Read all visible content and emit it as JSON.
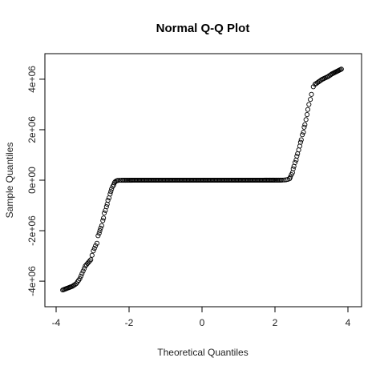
{
  "chart_data": {
    "type": "scatter",
    "title": "Normal Q-Q Plot",
    "xlabel": "Theoretical Quantiles",
    "ylabel": "Sample Quantiles",
    "xlim": [
      -4,
      4
    ],
    "ylim": [
      -4600000.0,
      4600000.0
    ],
    "x_ticks": [
      -4,
      -2,
      0,
      2,
      4
    ],
    "x_tick_labels": [
      "-4",
      "-2",
      "0",
      "2",
      "4"
    ],
    "y_ticks": [
      -4000000,
      -2000000,
      0,
      2000000,
      4000000
    ],
    "y_tick_labels": [
      "-4e+06",
      "-2e+06",
      "0e+00",
      "2e+06",
      "4e+06"
    ],
    "grid": false,
    "marker": "open-circle",
    "series": [
      {
        "x": [
          -3.82,
          -3.55,
          -3.45,
          -3.35,
          -3.2,
          -3.05,
          -2.98,
          -2.92,
          -2.88,
          -2.85,
          -2.82,
          -2.8,
          -2.78,
          -2.75,
          -2.72,
          -2.7,
          -2.68,
          -2.65,
          -2.62,
          -2.6,
          -2.58,
          -2.55,
          -2.52,
          -2.5,
          -2.48,
          -2.45,
          -2.42,
          -2.4,
          -2.38,
          -2.35,
          -2.32,
          -2.3,
          -2.25,
          -2.2,
          -2.1,
          -2.0,
          -1.8,
          -1.6,
          -1.4,
          -1.2,
          -1.0,
          -0.8,
          -0.6,
          -0.4,
          -0.2,
          0.0,
          0.2,
          0.4,
          0.6,
          0.8,
          1.0,
          1.2,
          1.4,
          1.6,
          1.8,
          2.0,
          2.1,
          2.2,
          2.25,
          2.3,
          2.35,
          2.4,
          2.42,
          2.45,
          2.48,
          2.5,
          2.52,
          2.55,
          2.58,
          2.6,
          2.62,
          2.65,
          2.68,
          2.7,
          2.72,
          2.75,
          2.78,
          2.8,
          2.82,
          2.85,
          2.88,
          2.9,
          2.93,
          2.97,
          3.0,
          3.05,
          3.1,
          3.2,
          3.3,
          3.45,
          3.55,
          3.82
        ],
        "y": [
          -4350000,
          -4200000,
          -4100000,
          -3900000,
          -3400000,
          -3150000,
          -2800000,
          -2600000,
          -2500000,
          -2200000,
          -2100000,
          -2000000,
          -1900000,
          -1800000,
          -1600000,
          -1500000,
          -1300000,
          -1200000,
          -1050000,
          -950000,
          -800000,
          -700000,
          -550000,
          -450000,
          -350000,
          -250000,
          -180000,
          -100000,
          -60000,
          -30000,
          -15000,
          -8000,
          -4000,
          -2000,
          -1000,
          -500,
          -300,
          -200,
          -150,
          -100,
          -60,
          -30,
          -15,
          -5,
          0,
          0,
          5,
          15,
          30,
          60,
          100,
          150,
          200,
          300,
          500,
          1000,
          2000,
          4000,
          8000,
          15000,
          30000,
          60000,
          120000,
          220000,
          300000,
          450000,
          550000,
          700000,
          800000,
          950000,
          1050000,
          1200000,
          1350000,
          1500000,
          1600000,
          1800000,
          1900000,
          2100000,
          2200000,
          2400000,
          2600000,
          2800000,
          3000000,
          3200000,
          3400000,
          3700000,
          3800000,
          3900000,
          4000000,
          4100000,
          4200000,
          4400000
        ]
      }
    ]
  }
}
